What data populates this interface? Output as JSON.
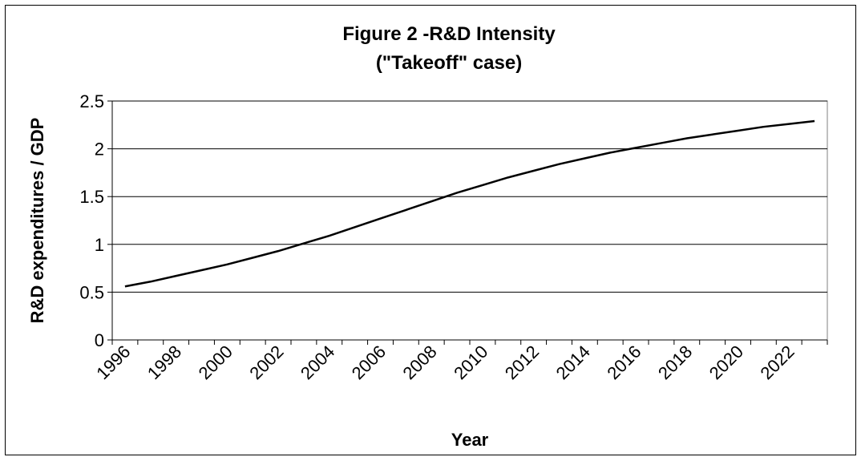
{
  "chart_data": {
    "type": "line",
    "title": "Figure 2 -R&D Intensity",
    "subtitle": "(\"Takeoff\" case)",
    "x_label": "Year",
    "y_label": "R&D expenditures / GDP",
    "categories": [
      "1996",
      null,
      "1998",
      null,
      "2000",
      null,
      "2002",
      null,
      "2004",
      null,
      "2006",
      null,
      "2008",
      null,
      "2010",
      null,
      "2012",
      null,
      "2014",
      null,
      "2016",
      null,
      "2018",
      null,
      "2020",
      null,
      "2022",
      null
    ],
    "series": [
      {
        "name": "R&D intensity",
        "color": "#000000",
        "values": [
          0.56,
          0.61,
          0.67,
          0.73,
          0.79,
          0.86,
          0.93,
          1.01,
          1.09,
          1.18,
          1.27,
          1.36,
          1.45,
          1.54,
          1.62,
          1.7,
          1.77,
          1.84,
          1.9,
          1.96,
          2.01,
          2.06,
          2.11,
          2.15,
          2.19,
          2.23,
          2.26,
          2.29
        ]
      }
    ],
    "ylim": [
      0,
      2.5
    ],
    "yticks": [
      0,
      0.5,
      1,
      1.5,
      2,
      2.5
    ],
    "grid": true
  }
}
